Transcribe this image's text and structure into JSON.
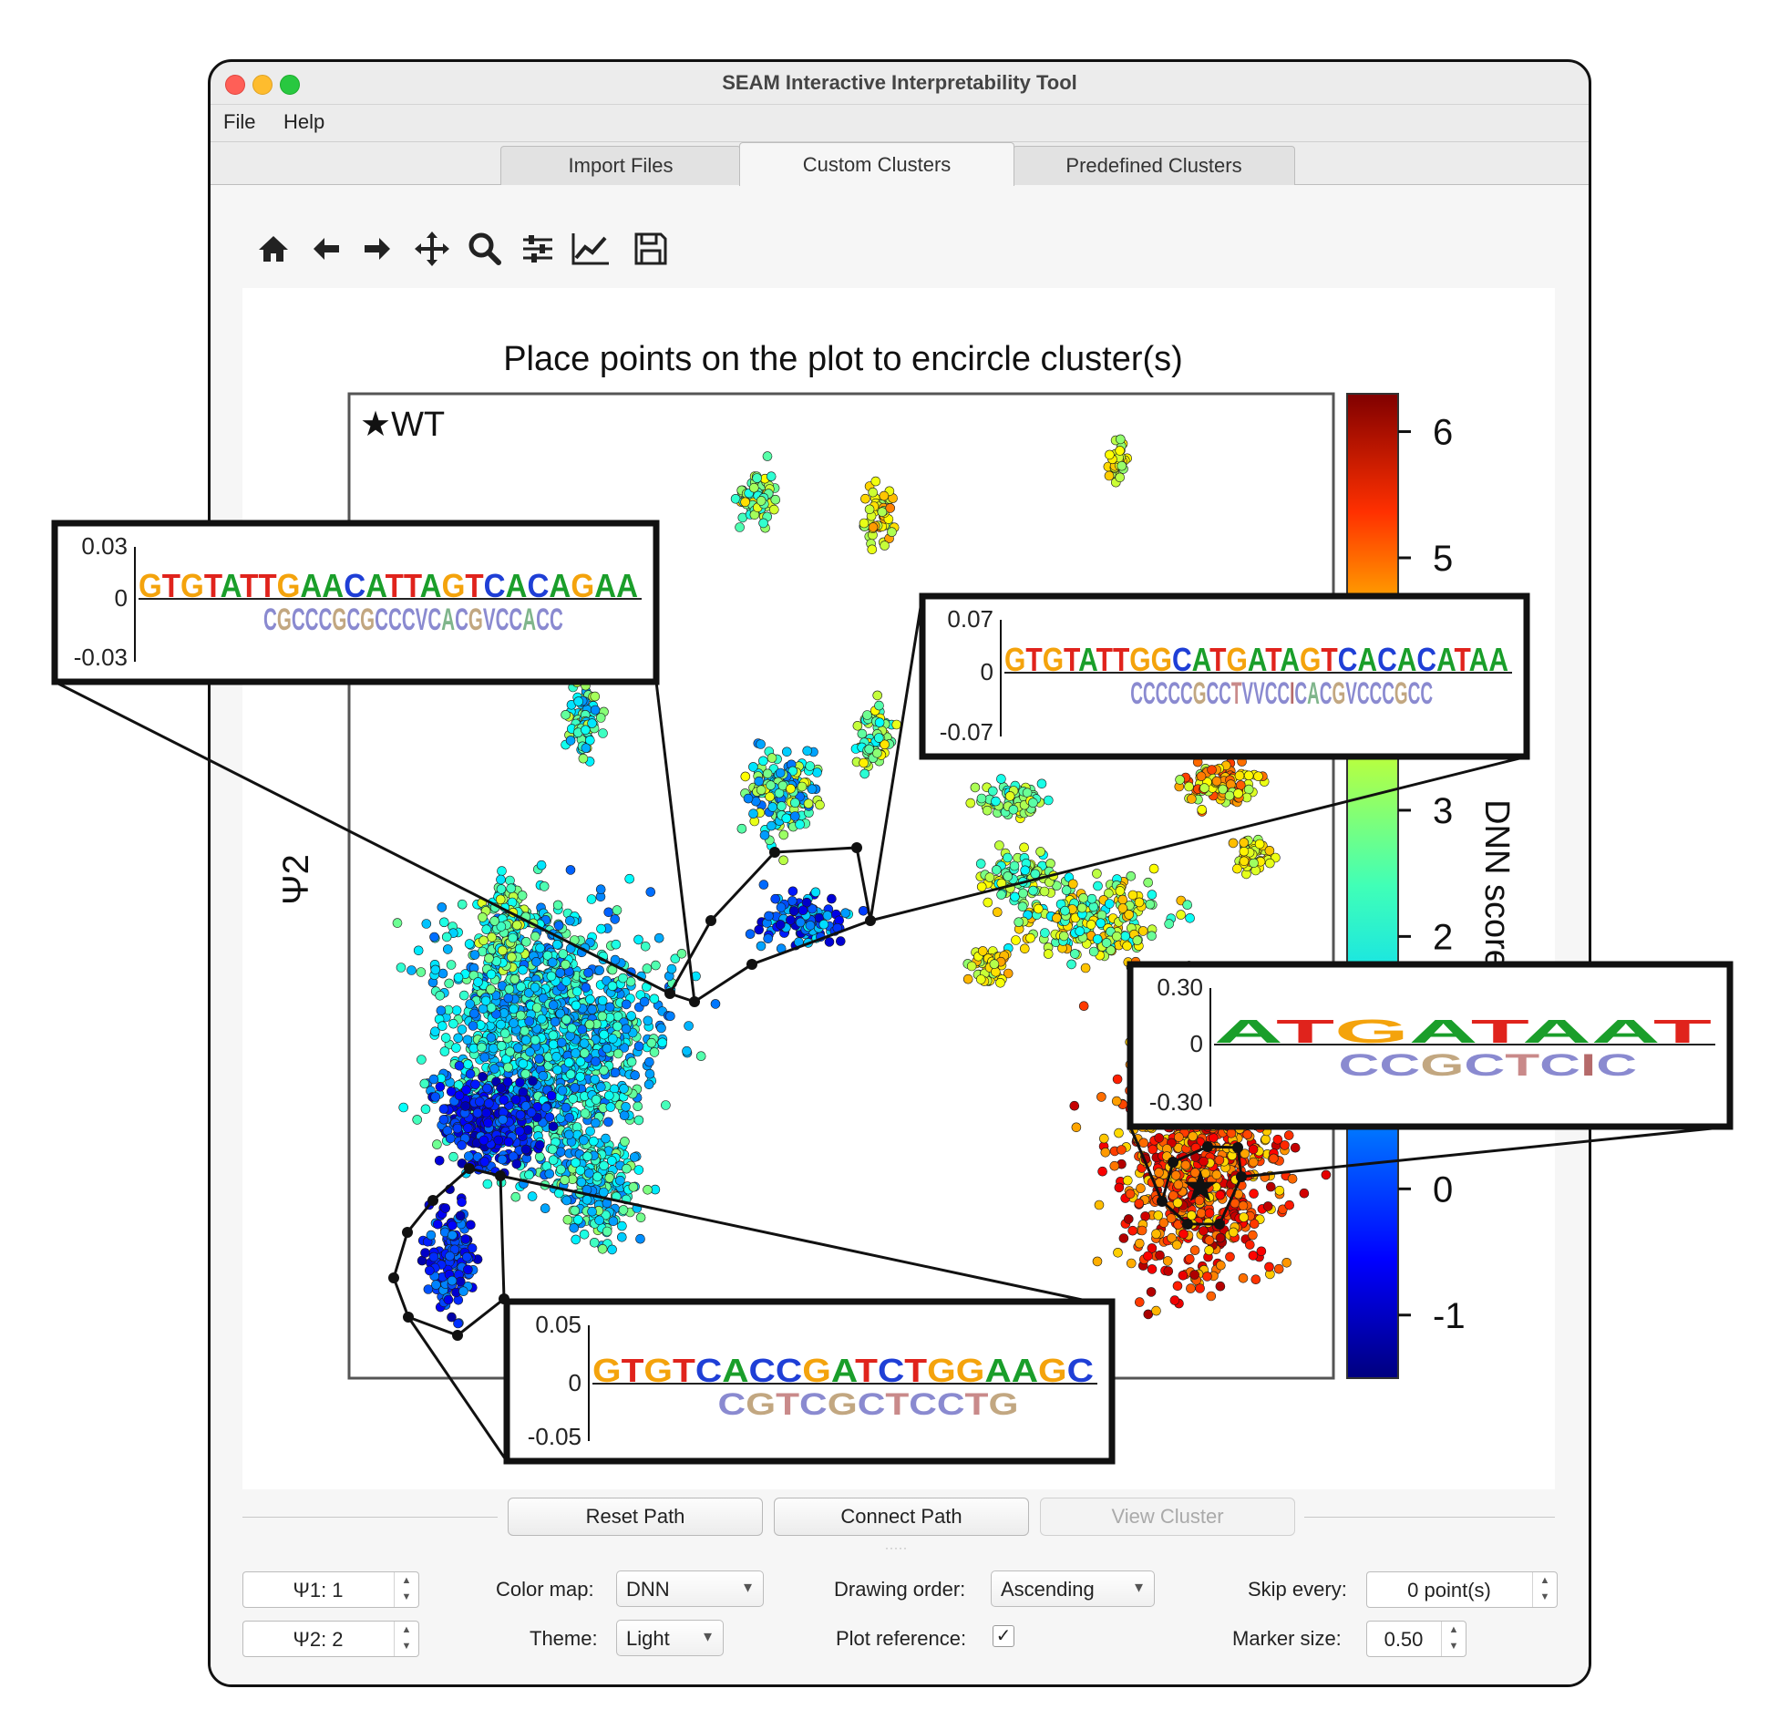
{
  "window": {
    "title": "SEAM Interactive Interpretability Tool"
  },
  "menu": {
    "items": [
      "File",
      "Help"
    ]
  },
  "tabs": [
    {
      "label": "Import Files",
      "active": false
    },
    {
      "label": "Custom Clusters",
      "active": true
    },
    {
      "label": "Predefined Clusters",
      "active": false
    }
  ],
  "toolbar": {
    "icons": [
      "home-icon",
      "back-arrow-icon",
      "forward-arrow-icon",
      "pan-icon",
      "zoom-icon",
      "configure-subplots-icon",
      "edit-axes-icon",
      "save-icon"
    ]
  },
  "plot": {
    "title": "Place points on the plot to encircle cluster(s)",
    "ylabel": "Ψ2",
    "legend_marker": "★WT",
    "colorbar": {
      "label": "DNN score",
      "ticks": [
        "6",
        "5",
        "3",
        "2",
        "0",
        "-1"
      ],
      "colormap": "jet"
    }
  },
  "chart_data": {
    "type": "scatter",
    "ylabel": "Ψ2",
    "colorbar_label": "DNN score",
    "colorbar_range": [
      -1.5,
      6.3
    ],
    "colorbar_ticks": [
      -1,
      0,
      2,
      3,
      5,
      6
    ],
    "legend": "★WT",
    "clusters": [
      {
        "region": "left main cluster",
        "score_range": [
          -1,
          2
        ]
      },
      {
        "region": "right main cluster (WT)",
        "score_range": [
          3,
          6
        ]
      }
    ]
  },
  "insets": [
    {
      "id": "top-left",
      "ytick_top": "0.03",
      "ytick_mid": "0",
      "ytick_bottom": "-0.03",
      "upper_letters": "GTGTATTGAACATTAGTCACAGAA",
      "lower_letters": "CGCCCGCGCCCVCACGVCCACC"
    },
    {
      "id": "top-right",
      "ytick_top": "0.07",
      "ytick_mid": "0",
      "ytick_bottom": "-0.07",
      "upper_letters": "GTGTATTGGCATGATAGTCACACATAA",
      "lower_letters": "CCCCCGCCTVVCCICACGVCCCGCC"
    },
    {
      "id": "middle-right",
      "ytick_top": "0.30",
      "ytick_mid": "0",
      "ytick_bottom": "-0.30",
      "upper_letters": "ATGATAAT",
      "lower_letters": "CCGCTCIC"
    },
    {
      "id": "bottom",
      "ytick_top": "0.05",
      "ytick_mid": "0",
      "ytick_bottom": "-0.05",
      "upper_letters": "GTGTCACCGATCTGGAAGC",
      "lower_letters": "CGTCGCTCCTG"
    }
  ],
  "buttons": {
    "reset": "Reset Path",
    "connect": "Connect Path",
    "view": "View Cluster"
  },
  "controls": {
    "psi1": "Ψ1: 1",
    "psi2": "Ψ2: 2",
    "color_map_label": "Color map:",
    "color_map_value": "DNN",
    "theme_label": "Theme:",
    "theme_value": "Light",
    "drawing_order_label": "Drawing order:",
    "drawing_order_value": "Ascending",
    "plot_reference_label": "Plot reference:",
    "plot_reference_checked": true,
    "skip_every_label": "Skip every:",
    "skip_every_value": "0 point(s)",
    "marker_size_label": "Marker size:",
    "marker_size_value": "0.50"
  }
}
